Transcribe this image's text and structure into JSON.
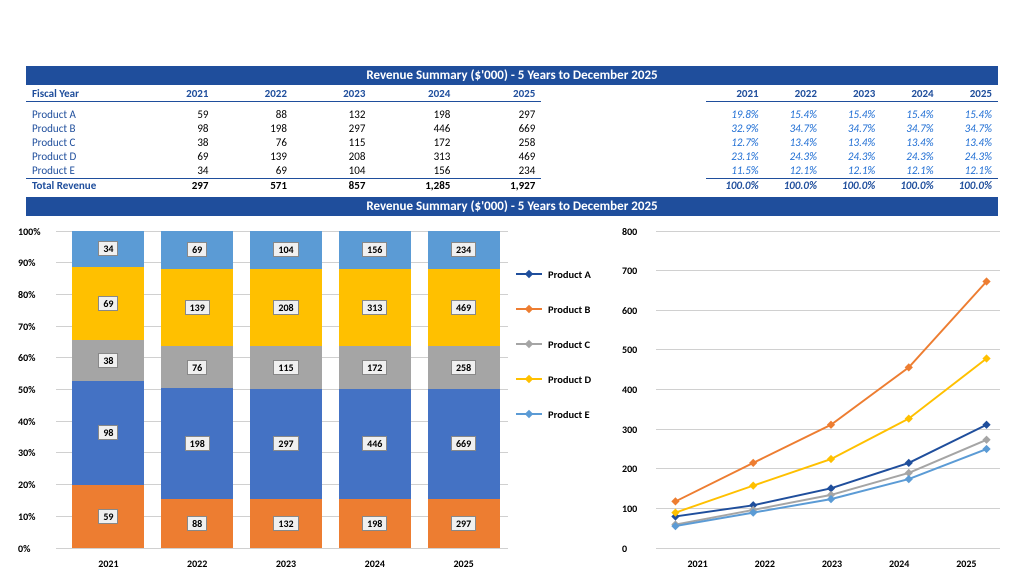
{
  "title_top": "Revenue Summary ($'000) - 5 Years to December 2025",
  "title_bottom": "Revenue Summary ($'000) - 5 Years to December 2025",
  "fiscal_year_label": "Fiscal Year",
  "years": [
    "2021",
    "2022",
    "2023",
    "2024",
    "2025"
  ],
  "products": [
    {
      "name": "Product A",
      "values": [
        59,
        88,
        132,
        198,
        297
      ],
      "pcts": [
        "19.8%",
        "15.4%",
        "15.4%",
        "15.4%",
        "15.4%"
      ],
      "color": "#ed7d31"
    },
    {
      "name": "Product B",
      "values": [
        98,
        198,
        297,
        446,
        669
      ],
      "pcts": [
        "32.9%",
        "34.7%",
        "34.7%",
        "34.7%",
        "34.7%"
      ],
      "color": "#4472c4"
    },
    {
      "name": "Product C",
      "values": [
        38,
        76,
        115,
        172,
        258
      ],
      "pcts": [
        "12.7%",
        "13.4%",
        "13.4%",
        "13.4%",
        "13.4%"
      ],
      "color": "#a5a5a5"
    },
    {
      "name": "Product D",
      "values": [
        69,
        139,
        208,
        313,
        469
      ],
      "pcts": [
        "23.1%",
        "24.3%",
        "24.3%",
        "24.3%",
        "24.3%"
      ],
      "color": "#ffc000"
    },
    {
      "name": "Product E",
      "values": [
        34,
        69,
        104,
        156,
        234
      ],
      "pcts": [
        "11.5%",
        "12.1%",
        "12.1%",
        "12.1%",
        "12.1%"
      ],
      "color": "#5b9bd5"
    }
  ],
  "total_label": "Total Revenue",
  "totals": [
    "297",
    "571",
    "857",
    "1,285",
    "1,927"
  ],
  "total_pcts": [
    "100.0%",
    "100.0%",
    "100.0%",
    "100.0%",
    "100.0%"
  ],
  "stacked_chart": {
    "y_ticks": [
      "0%",
      "10%",
      "20%",
      "30%",
      "40%",
      "50%",
      "60%",
      "70%",
      "80%",
      "90%",
      "100%"
    ],
    "ymax": 100
  },
  "line_chart": {
    "y_ticks": [
      "0",
      "100",
      "200",
      "300",
      "400",
      "500",
      "600",
      "700",
      "800"
    ],
    "ymax": 800,
    "legend": [
      "Product A",
      "Product B",
      "Product C",
      "Product D",
      "Product E"
    ],
    "legend_colors": [
      "#1f4e9c",
      "#ed7d31",
      "#a5a5a5",
      "#ffc000",
      "#5b9bd5"
    ]
  },
  "colors": {
    "band": "#1f4e9c",
    "text_accent": "#1f4e9c",
    "pct_text": "#1f6ed4",
    "grid": "#d0d0d0"
  },
  "fontsizes": {
    "title": 13,
    "body": 11,
    "axis": 10
  }
}
